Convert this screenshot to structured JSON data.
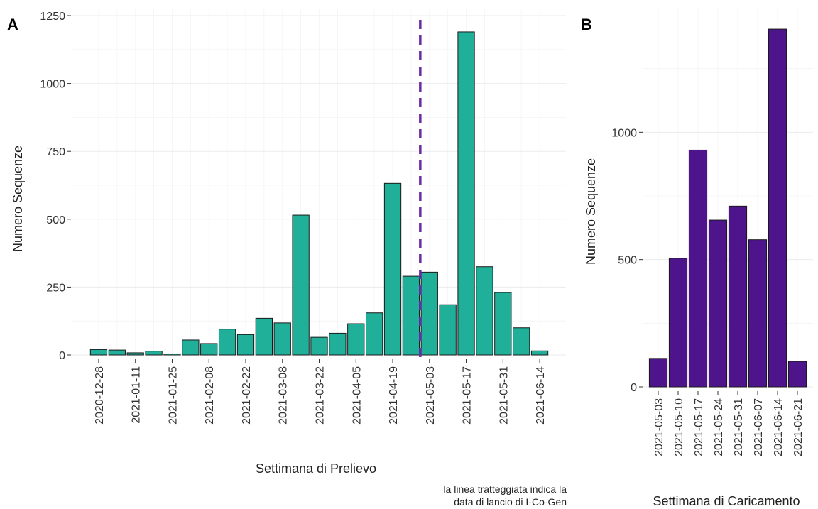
{
  "chart_data": [
    {
      "panel": "A",
      "type": "bar",
      "xlabel": "Settimana di Prelievo",
      "ylabel": "Numero Sequenze",
      "ylim": [
        0,
        1250
      ],
      "yticks": [
        0,
        250,
        500,
        750,
        1000,
        1250
      ],
      "grid": true,
      "bar_color": "#20b09a",
      "categories": [
        "2020-12-28",
        "2021-01-04",
        "2021-01-11",
        "2021-01-18",
        "2021-01-25",
        "2021-02-01",
        "2021-02-08",
        "2021-02-15",
        "2021-02-22",
        "2021-03-01",
        "2021-03-08",
        "2021-03-15",
        "2021-03-22",
        "2021-03-29",
        "2021-04-05",
        "2021-04-12",
        "2021-04-19",
        "2021-04-26",
        "2021-05-03",
        "2021-05-10",
        "2021-05-17",
        "2021-05-24",
        "2021-05-31",
        "2021-06-07",
        "2021-06-14"
      ],
      "x_tick_labels": [
        "2020-12-28",
        "2021-01-11",
        "2021-01-25",
        "2021-02-08",
        "2021-02-22",
        "2021-03-08",
        "2021-03-22",
        "2021-04-05",
        "2021-04-19",
        "2021-05-03",
        "2021-05-17",
        "2021-05-31",
        "2021-06-14"
      ],
      "values": [
        20,
        18,
        8,
        14,
        4,
        55,
        42,
        95,
        75,
        135,
        118,
        515,
        65,
        80,
        115,
        155,
        632,
        290,
        305,
        185,
        1190,
        325,
        230,
        100,
        15
      ],
      "annotation": {
        "type": "vline",
        "x": "2021-04-29",
        "style": "dashed",
        "color": "#6a2ca6",
        "note": [
          "la linea tratteggiata indica la",
          "data di lancio di I-Co-Gen"
        ]
      }
    },
    {
      "panel": "B",
      "type": "bar",
      "xlabel": "Settimana di Caricamento",
      "ylabel": "Numero Sequenze",
      "ylim": [
        0,
        1500
      ],
      "yticks": [
        0,
        500,
        1000
      ],
      "grid": true,
      "bar_color": "#4e148c",
      "categories": [
        "2021-05-03",
        "2021-05-10",
        "2021-05-17",
        "2021-05-24",
        "2021-05-31",
        "2021-06-07",
        "2021-06-14",
        "2021-06-21"
      ],
      "x_tick_labels": [
        "2021-05-03",
        "2021-05-10",
        "2021-05-17",
        "2021-05-24",
        "2021-05-31",
        "2021-06-07",
        "2021-06-14",
        "2021-06-21"
      ],
      "values": [
        112,
        505,
        930,
        655,
        710,
        578,
        1405,
        100
      ]
    }
  ]
}
